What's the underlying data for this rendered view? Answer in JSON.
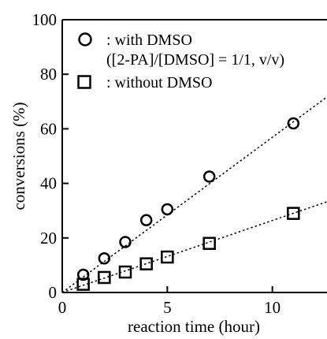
{
  "chart_data": {
    "type": "scatter",
    "xlabel": "reaction time (hour)",
    "ylabel": "conversions (%)",
    "xlim": [
      0,
      12.6
    ],
    "ylim": [
      0,
      100
    ],
    "x_ticks": [
      0,
      5,
      10
    ],
    "y_ticks": [
      0,
      20,
      40,
      60,
      80,
      100
    ],
    "tick_labels_x": [
      "0",
      "5",
      "10"
    ],
    "tick_labels_y": [
      "0",
      "20",
      "40",
      "60",
      "80",
      "100"
    ],
    "grid": false,
    "legend_position": "top-left",
    "series": [
      {
        "name": ": with DMSO",
        "name_line2": "([2-PA]/[DMSO] = 1/1, v/v)",
        "marker": "circle",
        "x": [
          1,
          2,
          3,
          4,
          5,
          7,
          11
        ],
        "y": [
          6.5,
          12.5,
          18.5,
          26.5,
          30.5,
          42.5,
          62
        ],
        "fit_line": {
          "slope": 5.69,
          "intercept": 0,
          "style": "dotted"
        }
      },
      {
        "name": ": without DMSO",
        "marker": "square",
        "x": [
          1,
          2,
          3,
          4,
          5,
          7,
          11
        ],
        "y": [
          3,
          5.5,
          7.5,
          10.5,
          13,
          18,
          29
        ],
        "fit_line": {
          "slope": 2.64,
          "intercept": 0,
          "style": "dotted"
        }
      }
    ]
  }
}
